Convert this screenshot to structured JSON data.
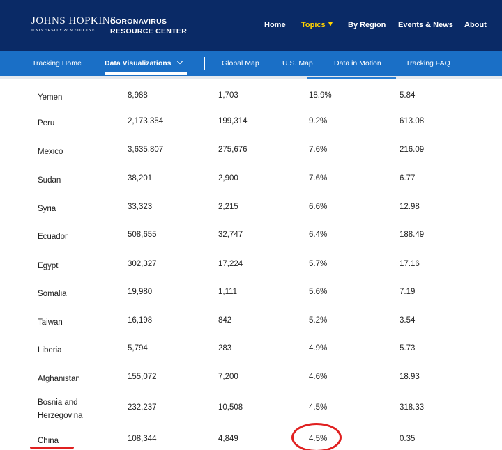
{
  "header": {
    "logo_name": "JOHNS HOPKINS",
    "logo_sub": "UNIVERSITY & MEDICINE",
    "title_line1": "CORONAVIRUS",
    "title_line2": "RESOURCE CENTER",
    "nav": [
      {
        "label": "Home"
      },
      {
        "label": "Topics"
      },
      {
        "label": "By Region"
      },
      {
        "label": "Events & News"
      },
      {
        "label": "About"
      }
    ]
  },
  "subnav": {
    "items": [
      {
        "label": "Tracking Home"
      },
      {
        "label": "Data Visualizations"
      },
      {
        "label": "Global Map"
      },
      {
        "label": "U.S. Map"
      },
      {
        "label": "Data in Motion"
      },
      {
        "label": "Tracking FAQ"
      }
    ]
  },
  "table": {
    "rows": [
      {
        "country": "Yemen",
        "cases": "8,988",
        "deaths": "1,703",
        "fatality": "18.9%",
        "per100k": "5.84"
      },
      {
        "country": "Peru",
        "cases": "2,173,354",
        "deaths": "199,314",
        "fatality": "9.2%",
        "per100k": "613.08"
      },
      {
        "country": "Mexico",
        "cases": "3,635,807",
        "deaths": "275,676",
        "fatality": "7.6%",
        "per100k": "216.09"
      },
      {
        "country": "Sudan",
        "cases": "38,201",
        "deaths": "2,900",
        "fatality": "7.6%",
        "per100k": "6.77"
      },
      {
        "country": "Syria",
        "cases": "33,323",
        "deaths": "2,215",
        "fatality": "6.6%",
        "per100k": "12.98"
      },
      {
        "country": "Ecuador",
        "cases": "508,655",
        "deaths": "32,747",
        "fatality": "6.4%",
        "per100k": "188.49"
      },
      {
        "country": "Egypt",
        "cases": "302,327",
        "deaths": "17,224",
        "fatality": "5.7%",
        "per100k": "17.16"
      },
      {
        "country": "Somalia",
        "cases": "19,980",
        "deaths": "1,111",
        "fatality": "5.6%",
        "per100k": "7.19"
      },
      {
        "country": "Taiwan",
        "cases": "16,198",
        "deaths": "842",
        "fatality": "5.2%",
        "per100k": "3.54"
      },
      {
        "country": "Liberia",
        "cases": "5,794",
        "deaths": "283",
        "fatality": "4.9%",
        "per100k": "5.73"
      },
      {
        "country": "Afghanistan",
        "cases": "155,072",
        "deaths": "7,200",
        "fatality": "4.6%",
        "per100k": "18.93"
      },
      {
        "country": "Bosnia and Herzegovina",
        "cases": "232,237",
        "deaths": "10,508",
        "fatality": "4.5%",
        "per100k": "318.33"
      },
      {
        "country": "China",
        "cases": "108,344",
        "deaths": "4,849",
        "fatality": "4.5%",
        "per100k": "0.35"
      }
    ]
  },
  "colors": {
    "header_bg": "#0a2a66",
    "subnav_bg": "#1a6fc6",
    "active_topic": "#ffd200",
    "annotation": "#e02020"
  },
  "icons": {
    "topics_caret": "caret-down-icon",
    "data_viz_chevron": "chevron-down-icon"
  }
}
